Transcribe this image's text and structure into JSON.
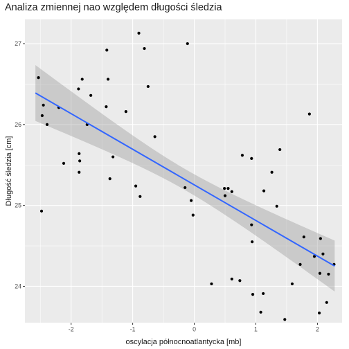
{
  "chart_data": {
    "type": "scatter",
    "title": "Analiza zmiennej nao względem długości śledzia",
    "xlabel": "oscylacja północnoatlantycka [mb]",
    "ylabel": "Długość śledzia [cm]",
    "xlim": [
      -2.75,
      2.4
    ],
    "ylim": [
      23.55,
      27.3
    ],
    "x_ticks": [
      -2,
      -1,
      0,
      1,
      2
    ],
    "y_ticks": [
      24,
      25,
      26,
      27
    ],
    "grid": true,
    "points": [
      {
        "x": -2.53,
        "y": 26.58
      },
      {
        "x": -2.47,
        "y": 26.11
      },
      {
        "x": -2.45,
        "y": 26.24
      },
      {
        "x": -2.48,
        "y": 24.93
      },
      {
        "x": -2.39,
        "y": 26.0
      },
      {
        "x": -2.2,
        "y": 26.21
      },
      {
        "x": -2.12,
        "y": 25.52
      },
      {
        "x": -1.88,
        "y": 26.44
      },
      {
        "x": -1.82,
        "y": 26.56
      },
      {
        "x": -1.87,
        "y": 25.64
      },
      {
        "x": -1.86,
        "y": 25.55
      },
      {
        "x": -1.87,
        "y": 25.41
      },
      {
        "x": -1.68,
        "y": 26.36
      },
      {
        "x": -1.74,
        "y": 26.0
      },
      {
        "x": -1.42,
        "y": 26.92
      },
      {
        "x": -1.4,
        "y": 26.56
      },
      {
        "x": -1.43,
        "y": 26.22
      },
      {
        "x": -1.32,
        "y": 25.6
      },
      {
        "x": -1.37,
        "y": 25.33
      },
      {
        "x": -1.11,
        "y": 26.16
      },
      {
        "x": -0.9,
        "y": 27.13
      },
      {
        "x": -0.81,
        "y": 26.94
      },
      {
        "x": -0.75,
        "y": 26.47
      },
      {
        "x": -0.95,
        "y": 25.24
      },
      {
        "x": -0.88,
        "y": 25.11
      },
      {
        "x": -0.64,
        "y": 25.85
      },
      {
        "x": -0.11,
        "y": 27.0
      },
      {
        "x": -0.15,
        "y": 25.22
      },
      {
        "x": -0.05,
        "y": 25.06
      },
      {
        "x": -0.02,
        "y": 24.88
      },
      {
        "x": 0.28,
        "y": 24.03
      },
      {
        "x": 0.49,
        "y": 25.21
      },
      {
        "x": 0.55,
        "y": 25.21
      },
      {
        "x": 0.5,
        "y": 25.12
      },
      {
        "x": 0.61,
        "y": 25.17
      },
      {
        "x": 0.61,
        "y": 24.09
      },
      {
        "x": 0.74,
        "y": 24.07
      },
      {
        "x": 0.78,
        "y": 25.62
      },
      {
        "x": 0.93,
        "y": 25.58
      },
      {
        "x": 0.93,
        "y": 24.76
      },
      {
        "x": 0.94,
        "y": 24.55
      },
      {
        "x": 0.95,
        "y": 23.9
      },
      {
        "x": 1.08,
        "y": 23.68
      },
      {
        "x": 1.12,
        "y": 23.91
      },
      {
        "x": 1.13,
        "y": 25.18
      },
      {
        "x": 1.26,
        "y": 25.41
      },
      {
        "x": 1.34,
        "y": 24.99
      },
      {
        "x": 1.39,
        "y": 25.69
      },
      {
        "x": 1.47,
        "y": 23.59
      },
      {
        "x": 1.59,
        "y": 24.03
      },
      {
        "x": 1.72,
        "y": 24.27
      },
      {
        "x": 1.78,
        "y": 24.61
      },
      {
        "x": 1.87,
        "y": 26.13
      },
      {
        "x": 1.95,
        "y": 24.37
      },
      {
        "x": 2.03,
        "y": 23.67
      },
      {
        "x": 2.04,
        "y": 24.16
      },
      {
        "x": 2.05,
        "y": 24.59
      },
      {
        "x": 2.09,
        "y": 24.4
      },
      {
        "x": 2.15,
        "y": 23.8
      },
      {
        "x": 2.18,
        "y": 24.15
      },
      {
        "x": 2.27,
        "y": 24.27
      }
    ],
    "fit": {
      "method": "linear regression with confidence band",
      "x": [
        -2.58,
        2.28
      ],
      "y": [
        26.39,
        24.25
      ],
      "band_lower": [
        26.05,
        23.93
      ],
      "band_upper": [
        26.74,
        24.56
      ],
      "colors": {
        "line": "#3366ff",
        "band": "#999999",
        "points": "#000000",
        "panel": "#ebebeb",
        "grid": "#ffffff"
      }
    }
  }
}
